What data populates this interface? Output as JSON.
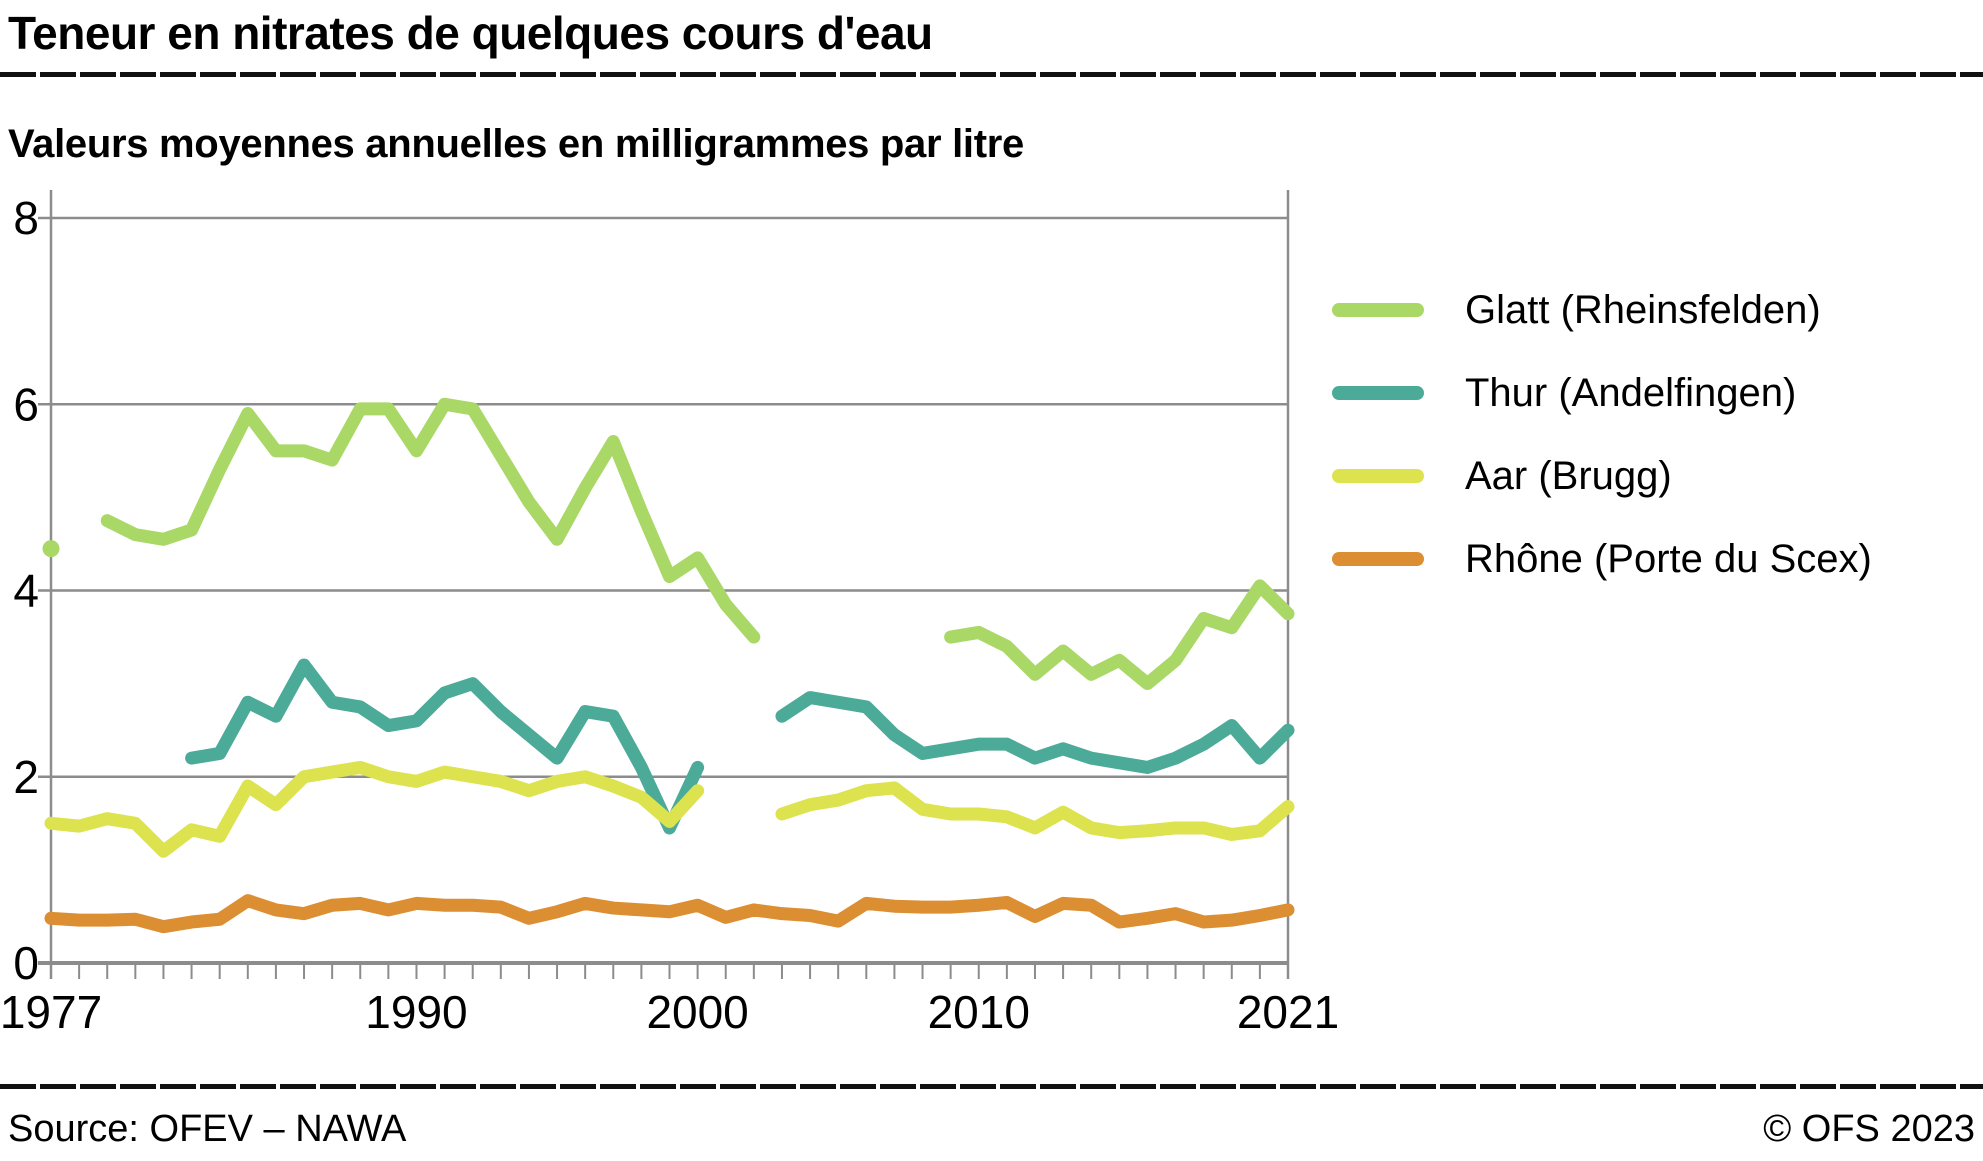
{
  "header": {
    "title": "Teneur en nitrates de quelques cours d'eau",
    "subtitle": "Valeurs moyennes annuelles en milligrammes par litre"
  },
  "footer": {
    "source": "Source: OFEV – NAWA",
    "copyright": "© OFS 2023"
  },
  "colors": {
    "grid": "#8c8c8c",
    "text": "#000000"
  },
  "chart_data": {
    "type": "line",
    "title": "Teneur en nitrates de quelques cours d'eau",
    "subtitle": "Valeurs moyennes annuelles en milligrammes par litre",
    "xlabel": "",
    "ylabel": "mg/l",
    "ylim": [
      0,
      8
    ],
    "yticks": [
      0,
      2,
      4,
      6,
      8
    ],
    "xticks": [
      1977,
      1990,
      2000,
      2010,
      2021
    ],
    "grid": "horizontal",
    "legend_position": "right",
    "categories": [
      1977,
      1978,
      1979,
      1980,
      1981,
      1982,
      1983,
      1984,
      1985,
      1986,
      1987,
      1988,
      1989,
      1990,
      1991,
      1992,
      1993,
      1994,
      1995,
      1996,
      1997,
      1998,
      1999,
      2000,
      2001,
      2002,
      2003,
      2004,
      2005,
      2006,
      2007,
      2008,
      2009,
      2010,
      2011,
      2012,
      2013,
      2014,
      2015,
      2016,
      2017,
      2018,
      2019,
      2020,
      2021
    ],
    "series": [
      {
        "name": "Glatt (Rheinsfelden)",
        "color": "#a9d867",
        "values": [
          4.45,
          null,
          4.75,
          4.6,
          4.55,
          4.65,
          5.3,
          5.9,
          5.5,
          5.5,
          5.4,
          5.95,
          5.95,
          5.5,
          6.0,
          5.95,
          5.45,
          4.95,
          4.55,
          5.1,
          5.6,
          4.85,
          4.15,
          4.35,
          3.85,
          3.5,
          null,
          null,
          null,
          null,
          null,
          null,
          3.5,
          3.55,
          3.4,
          3.1,
          3.35,
          3.1,
          3.25,
          3.0,
          3.25,
          3.7,
          3.6,
          4.05,
          3.75
        ]
      },
      {
        "name": "Thur (Andelfingen)",
        "color": "#4caa98",
        "values": [
          null,
          null,
          null,
          null,
          null,
          2.2,
          2.25,
          2.8,
          2.65,
          3.2,
          2.8,
          2.75,
          2.55,
          2.6,
          2.9,
          3.0,
          2.7,
          2.45,
          2.2,
          2.7,
          2.65,
          2.1,
          1.45,
          2.1,
          null,
          null,
          2.65,
          2.85,
          2.8,
          2.75,
          2.45,
          2.25,
          2.3,
          2.35,
          2.35,
          2.2,
          2.3,
          2.2,
          2.15,
          2.1,
          2.2,
          2.35,
          2.55,
          2.2,
          2.5
        ]
      },
      {
        "name": "Aar (Brugg)",
        "color": "#dde24f",
        "values": [
          1.5,
          1.47,
          1.55,
          1.5,
          1.2,
          1.43,
          1.36,
          1.9,
          1.7,
          2.0,
          2.05,
          2.1,
          2.0,
          1.95,
          2.05,
          2.0,
          1.95,
          1.85,
          1.95,
          2.0,
          1.9,
          1.78,
          1.52,
          1.85,
          null,
          null,
          1.6,
          1.7,
          1.75,
          1.85,
          1.88,
          1.65,
          1.6,
          1.6,
          1.57,
          1.45,
          1.62,
          1.45,
          1.4,
          1.42,
          1.45,
          1.45,
          1.38,
          1.42,
          1.68
        ]
      },
      {
        "name": "Rhône (Porte du Scex)",
        "color": "#dc8e33",
        "values": [
          0.48,
          0.46,
          0.46,
          0.47,
          0.39,
          0.44,
          0.47,
          0.67,
          0.57,
          0.53,
          0.62,
          0.64,
          0.57,
          0.64,
          0.62,
          0.62,
          0.6,
          0.48,
          0.55,
          0.64,
          0.59,
          0.57,
          0.55,
          0.62,
          0.49,
          0.57,
          0.53,
          0.51,
          0.45,
          0.64,
          0.61,
          0.6,
          0.6,
          0.62,
          0.65,
          0.5,
          0.64,
          0.62,
          0.44,
          0.48,
          0.53,
          0.44,
          0.46,
          0.51,
          0.57
        ]
      }
    ]
  }
}
